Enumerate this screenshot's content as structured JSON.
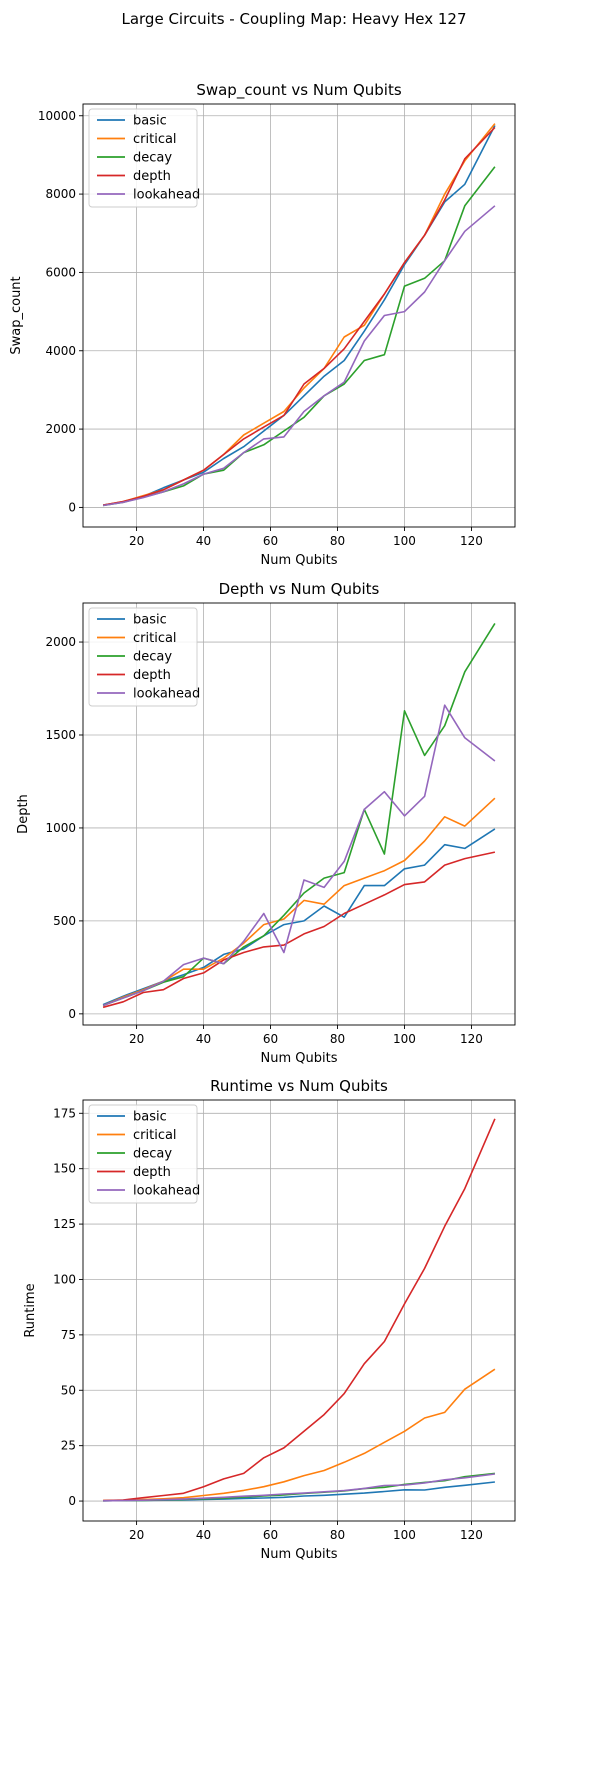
{
  "figure": {
    "suptitle": "Large Circuits - Coupling Map: Heavy Hex 127"
  },
  "colors": {
    "basic": "#1f77b4",
    "critical": "#ff7f0e",
    "decay": "#2ca02c",
    "depth": "#d62728",
    "lookahead": "#9467bd",
    "grid": "#b0b0b0"
  },
  "chart_data": [
    {
      "type": "line",
      "title": "Swap_count vs Num Qubits",
      "xlabel": "Num Qubits",
      "ylabel": "Swap_count",
      "xlim": [
        4,
        133
      ],
      "ylim": [
        -500,
        10300
      ],
      "xticks": [
        20,
        40,
        60,
        80,
        100,
        120
      ],
      "yticks": [
        0,
        2000,
        4000,
        6000,
        8000,
        10000
      ],
      "grid": true,
      "legend": "upper-left",
      "x": [
        10,
        16,
        22,
        28,
        34,
        40,
        46,
        52,
        58,
        64,
        70,
        76,
        82,
        88,
        94,
        100,
        106,
        112,
        118,
        127
      ],
      "series": [
        {
          "name": "basic",
          "color_key": "basic",
          "values": [
            60,
            140,
            280,
            500,
            700,
            900,
            1250,
            1550,
            1950,
            2350,
            2850,
            3350,
            3750,
            4500,
            5300,
            6200,
            6950,
            7800,
            8250,
            9750
          ]
        },
        {
          "name": "critical",
          "color_key": "critical",
          "values": [
            60,
            150,
            300,
            450,
            700,
            950,
            1350,
            1850,
            2150,
            2450,
            3050,
            3550,
            4350,
            4650,
            5450,
            6250,
            6950,
            8000,
            8850,
            9800
          ]
        },
        {
          "name": "decay",
          "color_key": "decay",
          "values": [
            50,
            130,
            260,
            400,
            550,
            850,
            950,
            1400,
            1600,
            1950,
            2300,
            2850,
            3150,
            3750,
            3900,
            5650,
            5850,
            6300,
            7700,
            8700
          ]
        },
        {
          "name": "depth",
          "color_key": "depth",
          "values": [
            60,
            150,
            280,
            450,
            700,
            950,
            1350,
            1750,
            2050,
            2350,
            3150,
            3550,
            4050,
            4750,
            5450,
            6250,
            6950,
            7850,
            8900,
            9700
          ]
        },
        {
          "name": "lookahead",
          "color_key": "lookahead",
          "values": [
            50,
            130,
            250,
            400,
            600,
            850,
            1000,
            1400,
            1750,
            1800,
            2450,
            2850,
            3200,
            4250,
            4900,
            5000,
            5500,
            6300,
            7050,
            7700
          ]
        }
      ]
    },
    {
      "type": "line",
      "title": "Depth vs Num Qubits",
      "xlabel": "Num Qubits",
      "ylabel": "Depth",
      "xlim": [
        4,
        133
      ],
      "ylim": [
        -60,
        2210
      ],
      "xticks": [
        20,
        40,
        60,
        80,
        100,
        120
      ],
      "yticks": [
        0,
        500,
        1000,
        1500,
        2000
      ],
      "grid": true,
      "legend": "upper-left",
      "x": [
        10,
        16,
        22,
        28,
        34,
        40,
        46,
        52,
        58,
        64,
        70,
        76,
        82,
        88,
        94,
        100,
        106,
        112,
        118,
        127
      ],
      "series": [
        {
          "name": "basic",
          "color_key": "basic",
          "values": [
            50,
            95,
            135,
            175,
            210,
            250,
            320,
            350,
            420,
            480,
            500,
            580,
            520,
            690,
            690,
            780,
            800,
            910,
            890,
            995
          ]
        },
        {
          "name": "critical",
          "color_key": "critical",
          "values": [
            45,
            90,
            130,
            175,
            240,
            240,
            300,
            380,
            480,
            510,
            610,
            590,
            690,
            730,
            770,
            825,
            930,
            1060,
            1010,
            1160
          ]
        },
        {
          "name": "decay",
          "color_key": "decay",
          "values": [
            45,
            85,
            125,
            170,
            200,
            300,
            270,
            360,
            420,
            530,
            650,
            730,
            760,
            1100,
            860,
            1630,
            1390,
            1550,
            1840,
            2100
          ]
        },
        {
          "name": "depth",
          "color_key": "depth",
          "values": [
            35,
            65,
            115,
            130,
            190,
            220,
            290,
            330,
            360,
            370,
            430,
            470,
            540,
            590,
            640,
            695,
            710,
            800,
            835,
            870
          ]
        },
        {
          "name": "lookahead",
          "color_key": "lookahead",
          "values": [
            45,
            85,
            125,
            175,
            265,
            300,
            270,
            390,
            540,
            330,
            720,
            680,
            820,
            1100,
            1195,
            1065,
            1170,
            1660,
            1485,
            1360
          ]
        }
      ]
    },
    {
      "type": "line",
      "title": "Runtime vs Num Qubits",
      "xlabel": "Num Qubits",
      "ylabel": "Runtime",
      "xlim": [
        4,
        133
      ],
      "ylim": [
        -9,
        181
      ],
      "xticks": [
        20,
        40,
        60,
        80,
        100,
        120
      ],
      "yticks": [
        0,
        25,
        50,
        75,
        100,
        125,
        150,
        175
      ],
      "grid": true,
      "legend": "upper-left",
      "x": [
        10,
        16,
        22,
        28,
        34,
        40,
        46,
        52,
        58,
        64,
        70,
        76,
        82,
        88,
        94,
        100,
        106,
        112,
        118,
        127
      ],
      "series": [
        {
          "name": "basic",
          "color_key": "basic",
          "values": [
            0.1,
            0.2,
            0.3,
            0.4,
            0.5,
            0.7,
            0.9,
            1.2,
            1.4,
            1.7,
            2.3,
            2.6,
            3.1,
            3.6,
            4.3,
            5.1,
            5.0,
            6.2,
            7.1,
            8.6
          ]
        },
        {
          "name": "critical",
          "color_key": "critical",
          "values": [
            0.2,
            0.4,
            0.7,
            1.0,
            1.5,
            2.5,
            3.5,
            4.8,
            6.5,
            8.7,
            11.5,
            13.8,
            17.5,
            21.5,
            26.5,
            31.5,
            37.5,
            40.0,
            50.5,
            59.5
          ]
        },
        {
          "name": "decay",
          "color_key": "decay",
          "values": [
            0.1,
            0.2,
            0.3,
            0.5,
            0.7,
            1.0,
            1.3,
            1.8,
            2.3,
            2.8,
            3.4,
            4.0,
            4.6,
            5.6,
            6.2,
            7.5,
            8.4,
            9.2,
            11.0,
            12.5
          ]
        },
        {
          "name": "depth",
          "color_key": "depth",
          "values": [
            0.2,
            0.5,
            1.5,
            2.5,
            3.5,
            6.5,
            10.0,
            12.5,
            19.5,
            24.0,
            31.5,
            39.0,
            48.5,
            62.0,
            72.0,
            89.0,
            105.0,
            124.0,
            141.0,
            172.5
          ]
        },
        {
          "name": "lookahead",
          "color_key": "lookahead",
          "values": [
            0.1,
            0.2,
            0.4,
            0.6,
            0.9,
            1.3,
            1.7,
            2.2,
            2.6,
            3.2,
            3.6,
            4.2,
            4.7,
            5.7,
            7.0,
            7.2,
            8.2,
            9.6,
            10.5,
            12.2
          ]
        }
      ]
    }
  ]
}
